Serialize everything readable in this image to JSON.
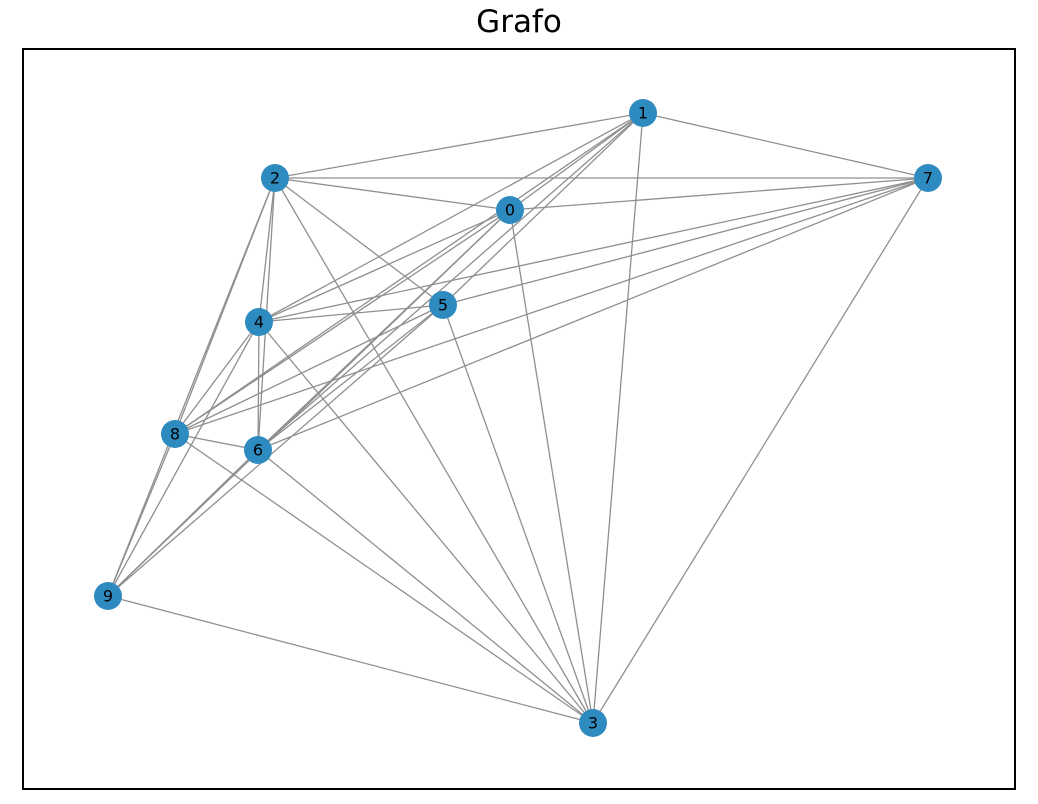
{
  "title": "Grafo",
  "colors": {
    "node_fill": "#2e8bc0",
    "edge_stroke": "#8f8f8f",
    "frame": "#000000"
  },
  "graph": {
    "nodes": [
      "0",
      "1",
      "2",
      "3",
      "4",
      "5",
      "6",
      "7",
      "8",
      "9"
    ],
    "edges": [
      [
        "1",
        "2"
      ],
      [
        "1",
        "7"
      ],
      [
        "1",
        "0"
      ],
      [
        "1",
        "4"
      ],
      [
        "1",
        "5"
      ],
      [
        "1",
        "6"
      ],
      [
        "1",
        "8"
      ],
      [
        "1",
        "3"
      ],
      [
        "2",
        "7"
      ],
      [
        "2",
        "0"
      ],
      [
        "2",
        "5"
      ],
      [
        "2",
        "4"
      ],
      [
        "2",
        "6"
      ],
      [
        "2",
        "8"
      ],
      [
        "2",
        "9"
      ],
      [
        "2",
        "3"
      ],
      [
        "7",
        "0"
      ],
      [
        "7",
        "4"
      ],
      [
        "7",
        "5"
      ],
      [
        "7",
        "8"
      ],
      [
        "7",
        "6"
      ],
      [
        "7",
        "3"
      ],
      [
        "0",
        "4"
      ],
      [
        "0",
        "8"
      ],
      [
        "0",
        "6"
      ],
      [
        "0",
        "9"
      ],
      [
        "0",
        "3"
      ],
      [
        "5",
        "4"
      ],
      [
        "5",
        "8"
      ],
      [
        "5",
        "6"
      ],
      [
        "5",
        "9"
      ],
      [
        "5",
        "3"
      ],
      [
        "4",
        "6"
      ],
      [
        "4",
        "8"
      ],
      [
        "4",
        "9"
      ],
      [
        "4",
        "3"
      ],
      [
        "8",
        "6"
      ],
      [
        "8",
        "9"
      ],
      [
        "8",
        "3"
      ],
      [
        "6",
        "9"
      ],
      [
        "6",
        "3"
      ],
      [
        "9",
        "3"
      ]
    ]
  }
}
